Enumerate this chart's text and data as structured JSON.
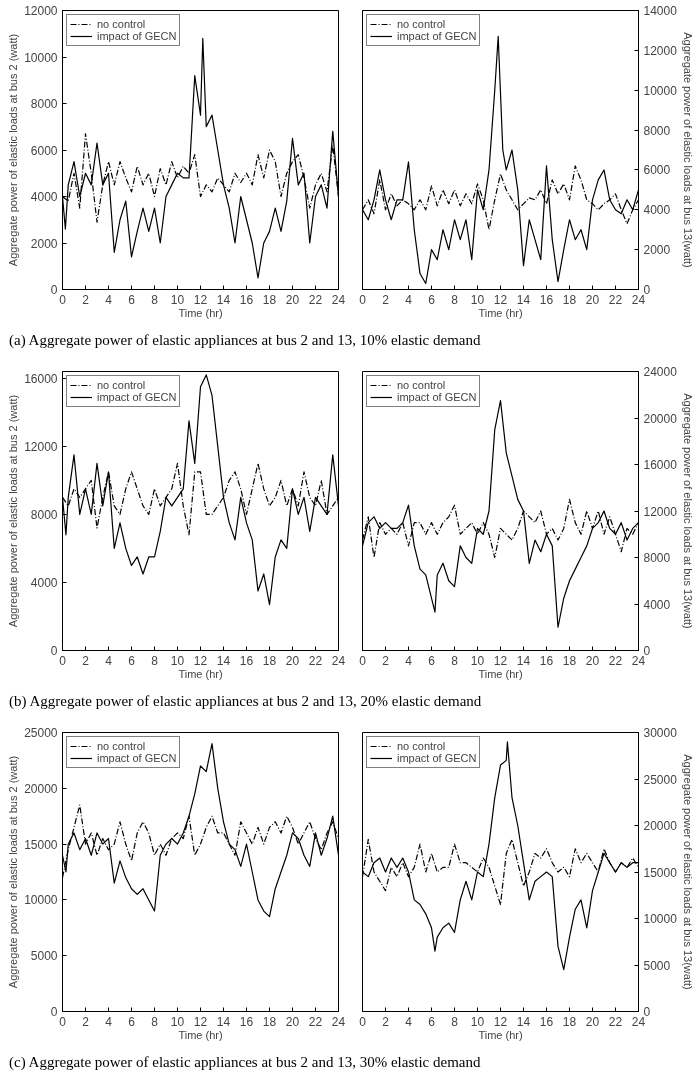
{
  "chart_data": [
    {
      "type": "line",
      "xlabel": "Time (hr)",
      "ylabel": "Aggregate power of elastic loads at bus 2 (watt)",
      "xlim": [
        0,
        24
      ],
      "xticks": [
        0,
        2,
        4,
        6,
        8,
        10,
        12,
        14,
        16,
        18,
        20,
        22,
        24
      ],
      "ylim": [
        0,
        12000
      ],
      "yticks": [
        0,
        2000,
        4000,
        6000,
        8000,
        10000,
        12000
      ],
      "legend": "top left",
      "grid": false,
      "annotations": [
        "(a)  Aggregate power of elastic appliances at bus 2 and 13, 10% elastic demand"
      ],
      "series": [
        {
          "name": "no control",
          "color": "#000000",
          "line_style": "dashed",
          "x": [
            0,
            0.5,
            1,
            1.5,
            2,
            2.5,
            3,
            3.5,
            4,
            4.5,
            5,
            5.5,
            6,
            6.5,
            7,
            7.5,
            8,
            8.5,
            9,
            9.5,
            10,
            10.5,
            11,
            11.5,
            12,
            12.5,
            13,
            13.5,
            14,
            14.5,
            15,
            15.5,
            16,
            16.5,
            17,
            17.5,
            18,
            18.5,
            19,
            19.5,
            20,
            20.5,
            21,
            21.5,
            22,
            22.5,
            23,
            23.5,
            24
          ],
          "values": [
            4000,
            3800,
            5000,
            3500,
            6700,
            5000,
            2900,
            4500,
            5500,
            4500,
            5500,
            4800,
            4200,
            5300,
            4500,
            5000,
            4000,
            5200,
            4500,
            5500,
            4800,
            5300,
            5000,
            5800,
            4000,
            4500,
            4200,
            4800,
            4500,
            4200,
            5000,
            4600,
            5000,
            4500,
            5800,
            4800,
            6000,
            5500,
            4000,
            5000,
            5500,
            5800,
            4800,
            3500,
            4500,
            5000,
            4200,
            6200,
            4000
          ]
        },
        {
          "name": "impact of GECN",
          "color": "#000000",
          "line_style": "solid",
          "x": [
            0,
            0.25,
            0.5,
            1,
            1.5,
            2,
            2.5,
            3,
            3.5,
            4,
            4.5,
            5,
            5.5,
            6,
            6.5,
            7,
            7.5,
            8,
            8.5,
            9,
            9.5,
            10,
            10.5,
            11,
            11.5,
            12,
            12.2,
            12.5,
            13,
            13.5,
            14,
            14.5,
            15,
            15.5,
            16,
            16.5,
            17,
            17.5,
            18,
            18.5,
            19,
            19.5,
            20,
            20.5,
            21,
            21.5,
            22,
            22.5,
            23,
            23.5,
            24
          ],
          "values": [
            4000,
            2600,
            4500,
            5500,
            4000,
            5000,
            4500,
            6300,
            4500,
            5000,
            1600,
            3000,
            3800,
            1400,
            2500,
            3500,
            2500,
            3500,
            2000,
            4000,
            4500,
            5000,
            4800,
            4800,
            9200,
            7500,
            10800,
            7000,
            7500,
            6000,
            4500,
            3500,
            2000,
            4000,
            3000,
            2000,
            500,
            2000,
            2500,
            3500,
            2500,
            3800,
            6500,
            4500,
            5000,
            2000,
            4000,
            4500,
            3500,
            6800,
            4000
          ]
        }
      ]
    },
    {
      "type": "line",
      "xlabel": "Time (hr)",
      "y2label": "Aggregate power of elastic loads at bus 13(watt)",
      "xlim": [
        0,
        24
      ],
      "xticks": [
        0,
        2,
        4,
        6,
        8,
        10,
        12,
        14,
        16,
        18,
        20,
        22,
        24
      ],
      "y2lim": [
        0,
        14000
      ],
      "y2ticks": [
        0,
        2000,
        4000,
        6000,
        8000,
        10000,
        12000,
        14000
      ],
      "legend": "top left",
      "grid": false,
      "series": [
        {
          "name": "no control",
          "color": "#000000",
          "line_style": "dashed",
          "axis": "y2",
          "x": [
            0,
            0.5,
            1,
            1.5,
            2,
            2.5,
            3,
            3.5,
            4,
            4.5,
            5,
            5.5,
            6,
            6.5,
            7,
            7.5,
            8,
            8.5,
            9,
            9.5,
            10,
            10.5,
            11,
            11.5,
            12,
            12.5,
            13,
            13.5,
            14,
            14.5,
            15,
            15.5,
            16,
            16.5,
            17,
            17.5,
            18,
            18.5,
            19,
            19.5,
            20,
            20.5,
            21,
            21.5,
            22,
            22.5,
            23,
            23.5,
            24
          ],
          "values": [
            4000,
            4500,
            3800,
            5500,
            4000,
            4800,
            4200,
            4500,
            4300,
            4000,
            4500,
            4000,
            5200,
            4200,
            5000,
            4300,
            5000,
            4200,
            4800,
            4300,
            5300,
            4500,
            3000,
            4500,
            5800,
            5000,
            4500,
            4000,
            4300,
            4600,
            4500,
            5000,
            4300,
            5500,
            4800,
            5300,
            4500,
            6200,
            5500,
            4500,
            4300,
            4000,
            4300,
            4500,
            4800,
            4000,
            3300,
            4000,
            4500
          ]
        },
        {
          "name": "impact of GECN",
          "color": "#000000",
          "line_style": "solid",
          "axis": "y2",
          "x": [
            0,
            0.5,
            1,
            1.5,
            2,
            2.5,
            3,
            3.5,
            4,
            4.5,
            5,
            5.5,
            6,
            6.5,
            7,
            7.5,
            8,
            8.5,
            9,
            9.5,
            10,
            10.5,
            11,
            11.5,
            11.8,
            12.2,
            12.5,
            13,
            13.5,
            14,
            14.5,
            15,
            15.5,
            16,
            16.5,
            17,
            17.5,
            18,
            18.5,
            19,
            19.5,
            20,
            20.5,
            21,
            21.5,
            22,
            22.5,
            23,
            23.5,
            24
          ],
          "values": [
            4000,
            3500,
            4500,
            6000,
            4500,
            3500,
            4500,
            4500,
            6400,
            3000,
            800,
            300,
            2000,
            1500,
            3000,
            2000,
            3500,
            2500,
            3500,
            1500,
            5000,
            4000,
            6000,
            10000,
            12700,
            7000,
            6000,
            7000,
            5000,
            1200,
            3500,
            2500,
            1500,
            6200,
            2500,
            400,
            2000,
            3500,
            2500,
            3000,
            2000,
            4500,
            5500,
            6000,
            4500,
            4000,
            3800,
            4500,
            4000,
            5000
          ]
        }
      ]
    },
    {
      "type": "line",
      "xlabel": "Time (hr)",
      "ylabel": "Aggregate power of elastic loads at bus 2 (watt)",
      "xlim": [
        0,
        24
      ],
      "xticks": [
        0,
        2,
        4,
        6,
        8,
        10,
        12,
        14,
        16,
        18,
        20,
        22,
        24
      ],
      "ylim": [
        0,
        16400
      ],
      "yticks": [
        0,
        4000,
        8000,
        12000,
        16000
      ],
      "legend": "top left",
      "grid": false,
      "annotations": [
        "(b)  Aggregate power of elastic appliances at bus 2 and 13, 20% elastic demand"
      ],
      "series": [
        {
          "name": "no control",
          "color": "#000000",
          "line_style": "dashed",
          "x": [
            0,
            0.5,
            1,
            1.5,
            2,
            2.5,
            3,
            3.5,
            4,
            4.5,
            5,
            5.5,
            6,
            6.5,
            7,
            7.5,
            8,
            8.5,
            9,
            9.5,
            10,
            10.5,
            11,
            11.5,
            12,
            12.5,
            13,
            13.5,
            14,
            14.5,
            15,
            15.5,
            16,
            16.5,
            17,
            17.5,
            18,
            18.5,
            19,
            19.5,
            20,
            20.5,
            21,
            21.5,
            22,
            22.5,
            23,
            23.5,
            24
          ],
          "values": [
            9000,
            8500,
            9500,
            9000,
            9500,
            10000,
            7200,
            9000,
            10500,
            8500,
            8000,
            9500,
            10500,
            9500,
            8500,
            8000,
            9500,
            8500,
            9000,
            9500,
            11000,
            8500,
            6800,
            10500,
            10500,
            8000,
            8000,
            8500,
            9000,
            10000,
            10500,
            9500,
            8000,
            9500,
            11000,
            9500,
            8500,
            9000,
            10000,
            8500,
            9500,
            8500,
            10500,
            9000,
            8500,
            10000,
            8000,
            8500,
            9000
          ]
        },
        {
          "name": "impact of GECN",
          "color": "#000000",
          "line_style": "solid",
          "x": [
            0,
            0.3,
            0.5,
            1,
            1.5,
            2,
            2.5,
            3,
            3.5,
            4,
            4.5,
            5,
            5.5,
            6,
            6.5,
            7,
            7.5,
            8,
            8.5,
            9,
            9.5,
            10,
            10.5,
            11,
            11.5,
            12,
            12.5,
            13,
            13.5,
            14,
            14.5,
            15,
            15.5,
            16,
            16.5,
            17,
            17.5,
            18,
            18.5,
            19,
            19.5,
            20,
            20.5,
            21,
            21.5,
            22,
            22.5,
            23,
            23.5,
            24
          ],
          "values": [
            9000,
            6800,
            9000,
            11500,
            8000,
            9500,
            8000,
            11000,
            8500,
            10500,
            6000,
            7500,
            6000,
            5000,
            5500,
            4500,
            5500,
            5500,
            7000,
            9000,
            8500,
            9000,
            9500,
            13500,
            11000,
            15500,
            16200,
            15000,
            12000,
            9000,
            7500,
            6500,
            9000,
            7500,
            6500,
            3500,
            4500,
            2700,
            5500,
            6500,
            6000,
            9500,
            8000,
            9000,
            7000,
            9000,
            8500,
            8000,
            11500,
            8500
          ]
        }
      ]
    },
    {
      "type": "line",
      "xlabel": "Time (hr)",
      "y2label": "Aggregate power of elastic loads at bus 13(watt)",
      "xlim": [
        0,
        24
      ],
      "xticks": [
        0,
        2,
        4,
        6,
        8,
        10,
        12,
        14,
        16,
        18,
        20,
        22,
        24
      ],
      "y2lim": [
        0,
        24000
      ],
      "y2ticks": [
        0,
        4000,
        8000,
        12000,
        16000,
        20000,
        24000
      ],
      "legend": "top left",
      "grid": false,
      "series": [
        {
          "name": "no control",
          "color": "#000000",
          "line_style": "dashed",
          "axis": "y2",
          "x": [
            0,
            0.5,
            1,
            1.5,
            2,
            2.5,
            3,
            3.5,
            4,
            4.5,
            5,
            5.5,
            6,
            6.5,
            7,
            7.5,
            8,
            8.5,
            9,
            9.5,
            10,
            10.5,
            11,
            11.5,
            12,
            12.5,
            13,
            13.5,
            14,
            14.5,
            15,
            15.5,
            16,
            16.5,
            17,
            17.5,
            18,
            18.5,
            19,
            19.5,
            20,
            20.5,
            21,
            21.5,
            22,
            22.5,
            23,
            23.5,
            24
          ],
          "values": [
            9500,
            11500,
            8000,
            11000,
            10000,
            10500,
            10000,
            11000,
            9000,
            11000,
            11000,
            10000,
            11000,
            10000,
            11000,
            11500,
            12500,
            10000,
            10500,
            11000,
            10000,
            11000,
            10000,
            8000,
            10500,
            10000,
            9500,
            10500,
            12000,
            11500,
            11000,
            12000,
            10000,
            10500,
            9500,
            10500,
            13000,
            11000,
            10000,
            12000,
            10500,
            12000,
            10000,
            11500,
            10000,
            8500,
            10500,
            10000,
            11000
          ]
        },
        {
          "name": "impact of GECN",
          "color": "#000000",
          "line_style": "solid",
          "axis": "y2",
          "x": [
            0,
            0.5,
            1,
            1.5,
            2,
            2.5,
            3,
            3.5,
            4,
            4.5,
            5,
            5.5,
            6,
            6.3,
            6.5,
            7,
            7.5,
            8,
            8.5,
            9,
            9.5,
            10,
            10.5,
            11,
            11.5,
            12,
            12.5,
            13,
            13.5,
            14,
            14.5,
            15,
            15.5,
            16,
            16.5,
            17,
            17.5,
            18,
            18.5,
            19,
            19.5,
            20,
            20.5,
            21,
            21.5,
            22,
            22.5,
            23,
            23.5,
            24
          ],
          "values": [
            9000,
            11000,
            11500,
            10500,
            11000,
            10500,
            10500,
            11000,
            12500,
            9000,
            7000,
            6500,
            4500,
            3300,
            6500,
            7500,
            6000,
            5500,
            9000,
            8000,
            7500,
            10500,
            10000,
            12000,
            19000,
            21500,
            17000,
            15000,
            13000,
            12000,
            7500,
            9500,
            8500,
            10000,
            9000,
            2000,
            4500,
            6000,
            7000,
            8000,
            9000,
            10500,
            11000,
            12000,
            10500,
            10000,
            11000,
            9500,
            10500,
            11000
          ]
        }
      ]
    },
    {
      "type": "line",
      "xlabel": "Time (hr)",
      "ylabel": "Aggregate power of elastic loads at bus 2 (watt)",
      "xlim": [
        0,
        24
      ],
      "xticks": [
        0,
        2,
        4,
        6,
        8,
        10,
        12,
        14,
        16,
        18,
        20,
        22,
        24
      ],
      "ylim": [
        0,
        25000
      ],
      "yticks": [
        0,
        5000,
        10000,
        15000,
        20000,
        25000
      ],
      "legend": "top left",
      "grid": false,
      "annotations": [
        "(c)  Aggregate power of elastic appliances at bus 2 and 13, 30% elastic demand"
      ],
      "series": [
        {
          "name": "no control",
          "color": "#000000",
          "line_style": "dashed",
          "x": [
            0,
            0.5,
            1,
            1.5,
            2,
            2.5,
            3,
            3.5,
            4,
            4.5,
            5,
            5.5,
            6,
            6.5,
            7,
            7.5,
            8,
            8.5,
            9,
            9.5,
            10,
            10.5,
            11,
            11.5,
            12,
            12.5,
            13,
            13.5,
            14,
            14.5,
            15,
            15.5,
            16,
            16.5,
            17,
            17.5,
            18,
            18.5,
            19,
            19.5,
            20,
            20.5,
            21,
            21.5,
            22,
            22.5,
            23,
            23.5,
            24
          ],
          "values": [
            12000,
            14500,
            16500,
            18500,
            15000,
            16000,
            14000,
            15500,
            14500,
            15000,
            17000,
            15000,
            13500,
            16000,
            17000,
            16000,
            14000,
            15000,
            14000,
            15500,
            16000,
            15500,
            17500,
            14000,
            15000,
            16500,
            17500,
            16000,
            16000,
            15000,
            14000,
            17000,
            16000,
            15000,
            16500,
            15000,
            16500,
            17000,
            16000,
            17500,
            16500,
            15000,
            16000,
            17000,
            15500,
            14500,
            16000,
            17000,
            15500
          ]
        },
        {
          "name": "impact of GECN",
          "color": "#000000",
          "line_style": "solid",
          "x": [
            0,
            0.3,
            0.5,
            1,
            1.5,
            2,
            2.5,
            3,
            3.5,
            4,
            4.5,
            5,
            5.5,
            6,
            6.5,
            7,
            7.5,
            8,
            8.5,
            9,
            9.5,
            10,
            10.5,
            11,
            11.5,
            12,
            12.5,
            13,
            13.5,
            14,
            14.5,
            15,
            15.5,
            16,
            16.5,
            17,
            17.5,
            18,
            18.5,
            19,
            19.5,
            20,
            20.5,
            21,
            21.5,
            22,
            22.5,
            23,
            23.5,
            24
          ],
          "values": [
            14000,
            12500,
            15000,
            16000,
            14500,
            15500,
            14000,
            16000,
            15000,
            15500,
            11500,
            13500,
            12000,
            11000,
            10500,
            11000,
            10000,
            9000,
            14000,
            15000,
            15500,
            15000,
            16000,
            17500,
            19500,
            22000,
            21500,
            24000,
            20000,
            17000,
            15000,
            14500,
            13000,
            15000,
            12500,
            10000,
            9000,
            8500,
            11000,
            12500,
            14000,
            16000,
            15500,
            14000,
            13000,
            16000,
            14000,
            15500,
            17500,
            14000
          ]
        }
      ]
    },
    {
      "type": "line",
      "xlabel": "Time (hr)",
      "y2label": "Aggregate power of elastic loads at bus 13(watt)",
      "xlim": [
        0,
        24
      ],
      "xticks": [
        0,
        2,
        4,
        6,
        8,
        10,
        12,
        14,
        16,
        18,
        20,
        22,
        24
      ],
      "y2lim": [
        0,
        30000
      ],
      "y2ticks": [
        0,
        5000,
        10000,
        15000,
        20000,
        25000,
        30000
      ],
      "legend": "top left",
      "grid": false,
      "series": [
        {
          "name": "no control",
          "color": "#000000",
          "line_style": "dashed",
          "axis": "y2",
          "x": [
            0,
            0.5,
            1,
            1.5,
            2,
            2.5,
            3,
            3.5,
            4,
            4.5,
            5,
            5.5,
            6,
            6.5,
            7,
            7.5,
            8,
            8.5,
            9,
            9.5,
            10,
            10.5,
            11,
            11.5,
            12,
            12.5,
            13,
            13.5,
            14,
            14.5,
            15,
            15.5,
            16,
            16.5,
            17,
            17.5,
            18,
            18.5,
            19,
            19.5,
            20,
            20.5,
            21,
            21.5,
            22,
            22.5,
            23,
            23.5,
            24
          ],
          "values": [
            14500,
            18500,
            15000,
            14000,
            13000,
            15500,
            14500,
            16000,
            14500,
            15500,
            18000,
            15000,
            17000,
            15000,
            15500,
            15500,
            18000,
            16000,
            16000,
            15500,
            15000,
            16500,
            15500,
            13500,
            11500,
            17000,
            18500,
            16000,
            13500,
            15000,
            17000,
            16500,
            17500,
            16000,
            15000,
            15500,
            14500,
            17500,
            16000,
            17000,
            16000,
            15000,
            17500,
            16000,
            15000,
            16000,
            15500,
            16500,
            15500
          ]
        },
        {
          "name": "impact of GECN",
          "color": "#000000",
          "line_style": "solid",
          "axis": "y2",
          "x": [
            0,
            0.5,
            1,
            1.5,
            2,
            2.5,
            3,
            3.5,
            4,
            4.5,
            5,
            5.5,
            6,
            6.3,
            6.5,
            7,
            7.5,
            8,
            8.5,
            9,
            9.5,
            10,
            10.5,
            11,
            11.5,
            12,
            12.5,
            12.6,
            13,
            13.5,
            14,
            14.5,
            15,
            15.5,
            16,
            16.5,
            17,
            17.5,
            18,
            18.5,
            19,
            19.5,
            20,
            20.5,
            21,
            21.5,
            22,
            22.5,
            23,
            23.5,
            24
          ],
          "values": [
            15000,
            14500,
            16000,
            16500,
            15000,
            16500,
            15500,
            16500,
            15000,
            12000,
            11500,
            10500,
            9000,
            6500,
            8000,
            9000,
            9500,
            8500,
            12000,
            14000,
            12000,
            15000,
            14500,
            18000,
            23000,
            26500,
            27000,
            29000,
            23000,
            20000,
            16000,
            12000,
            14000,
            14500,
            15000,
            14500,
            7000,
            4500,
            8000,
            11000,
            12000,
            9000,
            13000,
            15000,
            17000,
            16000,
            15000,
            16000,
            15500,
            16000,
            16000
          ]
        }
      ]
    }
  ]
}
